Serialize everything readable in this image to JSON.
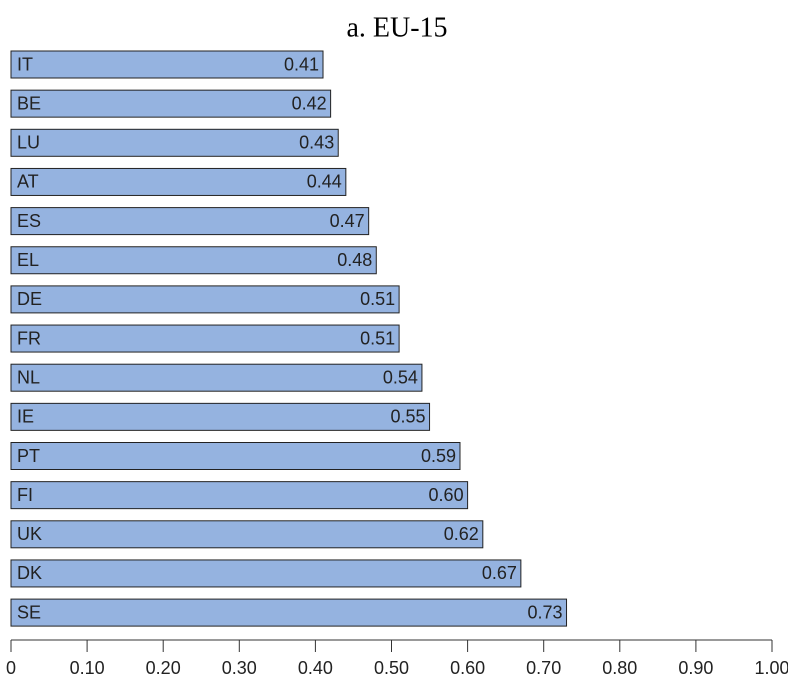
{
  "chart_data": {
    "type": "bar",
    "orientation": "horizontal",
    "title": "a. EU-15",
    "categories": [
      "IT",
      "BE",
      "LU",
      "AT",
      "ES",
      "EL",
      "DE",
      "FR",
      "NL",
      "IE",
      "PT",
      "FI",
      "UK",
      "DK",
      "SE"
    ],
    "values": [
      0.41,
      0.42,
      0.43,
      0.44,
      0.47,
      0.48,
      0.51,
      0.51,
      0.54,
      0.55,
      0.59,
      0.6,
      0.62,
      0.67,
      0.73
    ],
    "value_labels": [
      "0.41",
      "0.42",
      "0.43",
      "0.44",
      "0.47",
      "0.48",
      "0.51",
      "0.51",
      "0.54",
      "0.55",
      "0.59",
      "0.60",
      "0.62",
      "0.67",
      "0.73"
    ],
    "color": "#95b3e0",
    "xlim": [
      0,
      1
    ],
    "xticks": [
      0,
      {
        "value": 0.1,
        "label": "0.10"
      },
      {
        "value": 0.2,
        "label": "0.20"
      },
      {
        "value": 0.3,
        "label": "0.30"
      },
      {
        "value": 0.4,
        "label": "0.40"
      },
      {
        "value": 0.5,
        "label": "0.50"
      },
      {
        "value": 0.6,
        "label": "0.60"
      },
      {
        "value": 0.7,
        "label": "0.70"
      },
      {
        "value": 0.8,
        "label": "0.80"
      },
      {
        "value": 0.9,
        "label": "0.90"
      },
      {
        "value": 1,
        "label": "1.00"
      }
    ],
    "grid": false
  }
}
